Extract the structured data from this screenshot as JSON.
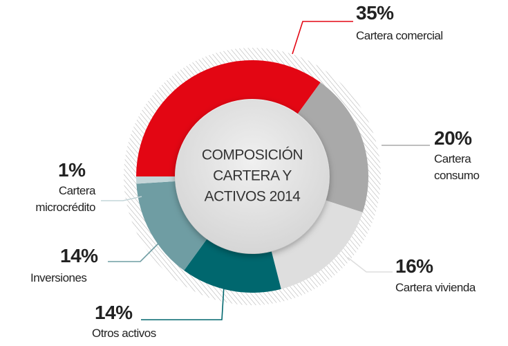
{
  "chart_data": {
    "type": "donut",
    "title_lines": [
      "COMPOSICIÓN",
      "CARTERA Y",
      "ACTIVOS 2014"
    ],
    "categories": [
      "Cartera comercial",
      "Cartera consumo",
      "Cartera vivienda",
      "Otros activos",
      "Inversiones",
      "Cartera microcrédito"
    ],
    "values": [
      35,
      20,
      16,
      14,
      14,
      1
    ],
    "value_labels": [
      "35%",
      "20%",
      "16%",
      "14%",
      "14%",
      "1%"
    ],
    "colors": [
      "#e30613",
      "#a9a9a9",
      "#dedede",
      "#00676e",
      "#6f9da3",
      "#c4d5d8"
    ]
  }
}
